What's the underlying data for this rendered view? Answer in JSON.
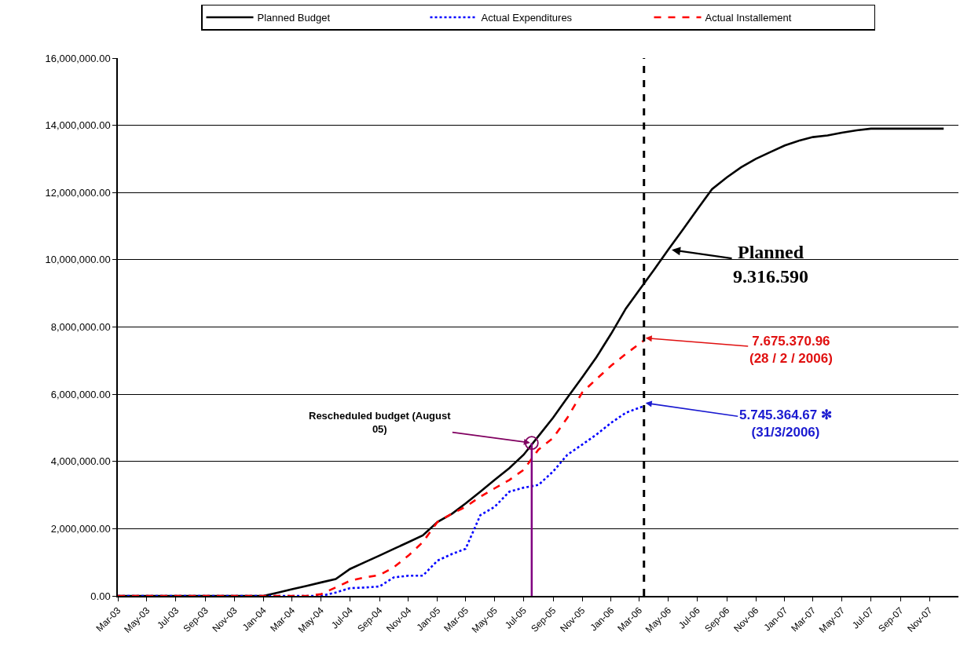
{
  "chart_data": {
    "type": "line",
    "x": [
      "2003-03",
      "2003-06",
      "2003-09",
      "2003-12",
      "2004-01",
      "2004-02",
      "2004-03",
      "2004-04",
      "2004-05",
      "2004-06",
      "2004-07",
      "2004-08",
      "2004-09",
      "2004-10",
      "2004-11",
      "2004-12",
      "2005-01",
      "2005-02",
      "2005-03",
      "2005-04",
      "2005-05",
      "2005-06",
      "2005-07",
      "2005-08",
      "2005-09",
      "2005-10",
      "2005-11",
      "2005-12",
      "2006-01",
      "2006-02",
      "2006-03",
      "2006-04",
      "2006-05",
      "2006-06",
      "2006-07",
      "2006-08",
      "2006-09",
      "2006-10",
      "2006-11",
      "2006-12",
      "2007-01",
      "2007-02",
      "2007-03",
      "2007-04",
      "2007-05",
      "2007-06",
      "2007-07",
      "2007-08",
      "2007-09",
      "2007-10",
      "2007-11",
      "2007-12"
    ],
    "series": [
      {
        "name": "Planned Budget",
        "color": "#000000",
        "line_style": "solid",
        "values": [
          0,
          0,
          0,
          0,
          0,
          100000,
          200000,
          300000,
          400000,
          500000,
          800000,
          1000000,
          1200000,
          1400000,
          1600000,
          1800000,
          2200000,
          2450000,
          2750000,
          3100000,
          3450000,
          3800000,
          4200000,
          4750000,
          5300000,
          5900000,
          6500000,
          7100000,
          7800000,
          8550000,
          9100000,
          9700000,
          10300000,
          10900000,
          11500000,
          12100000,
          12450000,
          12750000,
          13000000,
          13200000,
          13400000,
          13550000,
          13650000,
          13700000,
          13780000,
          13850000,
          13900000,
          13900000,
          13900000,
          13900000,
          13900000,
          13900000
        ]
      },
      {
        "name": "Actual Expenditures",
        "color": "#0000ff",
        "line_style": "dotted",
        "x": [
          "2003-03",
          "2003-06",
          "2003-09",
          "2003-12",
          "2004-03",
          "2004-05",
          "2004-06",
          "2004-07",
          "2004-08",
          "2004-09",
          "2004-10",
          "2004-11",
          "2004-12",
          "2005-01",
          "2005-02",
          "2005-03",
          "2005-04",
          "2005-05",
          "2005-06",
          "2005-07",
          "2005-08",
          "2005-09",
          "2005-10",
          "2005-11",
          "2005-12",
          "2006-01",
          "2006-02",
          "2006-03-11"
        ],
        "values": [
          0,
          0,
          0,
          0,
          0,
          0,
          100000,
          230000,
          250000,
          280000,
          550000,
          600000,
          600000,
          1050000,
          1250000,
          1400000,
          2400000,
          2650000,
          3100000,
          3220000,
          3300000,
          3700000,
          4200000,
          4500000,
          4800000,
          5150000,
          5450000,
          5650000
        ]
      },
      {
        "name": "Actual Installement",
        "color": "#ff0000",
        "line_style": "dashed",
        "x": [
          "2003-03",
          "2003-06",
          "2003-09",
          "2003-12",
          "2004-03",
          "2004-04",
          "2004-05",
          "2004-06",
          "2004-07",
          "2004-08",
          "2004-09",
          "2004-10",
          "2004-11",
          "2004-12",
          "2005-01",
          "2005-02",
          "2005-03",
          "2005-04",
          "2005-05",
          "2005-06",
          "2005-07",
          "2005-08",
          "2005-09",
          "2005-10",
          "2005-11",
          "2005-12",
          "2006-01",
          "2006-02",
          "2006-03-11"
        ],
        "values": [
          0,
          0,
          0,
          0,
          0,
          0,
          50000,
          250000,
          450000,
          550000,
          620000,
          850000,
          1200000,
          1600000,
          2200000,
          2450000,
          2650000,
          2950000,
          3200000,
          3450000,
          3750000,
          4350000,
          4700000,
          5300000,
          6050000,
          6450000,
          6850000,
          7200000,
          7600000
        ]
      }
    ],
    "xlim": [
      "2003-03-01",
      "2008-01-01"
    ],
    "xticks": [
      {
        "value": "2003-03",
        "label": "Mar-03"
      },
      {
        "value": "2003-05",
        "label": "May-03"
      },
      {
        "value": "2003-07",
        "label": "Jul-03"
      },
      {
        "value": "2003-09",
        "label": "Sep-03"
      },
      {
        "value": "2003-11",
        "label": "Nov-03"
      },
      {
        "value": "2004-01",
        "label": "Jan-04"
      },
      {
        "value": "2004-03",
        "label": "Mar-04"
      },
      {
        "value": "2004-05",
        "label": "May-04"
      },
      {
        "value": "2004-07",
        "label": "Jul-04"
      },
      {
        "value": "2004-09",
        "label": "Sep-04"
      },
      {
        "value": "2004-11",
        "label": "Nov-04"
      },
      {
        "value": "2005-01",
        "label": "Jan-05"
      },
      {
        "value": "2005-03",
        "label": "Mar-05"
      },
      {
        "value": "2005-05",
        "label": "May-05"
      },
      {
        "value": "2005-07",
        "label": "Jul-05"
      },
      {
        "value": "2005-09",
        "label": "Sep-05"
      },
      {
        "value": "2005-11",
        "label": "Nov-05"
      },
      {
        "value": "2006-01",
        "label": "Jan-06"
      },
      {
        "value": "2006-03",
        "label": "Mar-06"
      },
      {
        "value": "2006-05",
        "label": "May-06"
      },
      {
        "value": "2006-07",
        "label": "Jul-06"
      },
      {
        "value": "2006-09",
        "label": "Sep-06"
      },
      {
        "value": "2006-11",
        "label": "Nov-06"
      },
      {
        "value": "2007-01",
        "label": "Jan-07"
      },
      {
        "value": "2007-03",
        "label": "Mar-07"
      },
      {
        "value": "2007-05",
        "label": "May-07"
      },
      {
        "value": "2007-07",
        "label": "Jul-07"
      },
      {
        "value": "2007-09",
        "label": "Sep-07"
      },
      {
        "value": "2007-11",
        "label": "Nov-07"
      }
    ],
    "ylim": [
      0,
      16000000
    ],
    "yticks": [
      {
        "value": 0,
        "label": "0.00"
      },
      {
        "value": 2000000,
        "label": "2,000,000.00"
      },
      {
        "value": 4000000,
        "label": "4,000,000.00"
      },
      {
        "value": 6000000,
        "label": "6,000,000.00"
      },
      {
        "value": 8000000,
        "label": "8,000,000.00"
      },
      {
        "value": 10000000,
        "label": "10,000,000.00"
      },
      {
        "value": 12000000,
        "label": "12,000,000.00"
      },
      {
        "value": 14000000,
        "label": "14,000,000.00"
      },
      {
        "value": 16000000,
        "label": "16,000,000.00"
      }
    ],
    "grid": "y",
    "legend": "top",
    "marker": "none",
    "ref_lines": [
      {
        "axis": "x",
        "value": "2006-03-11",
        "color": "#000000",
        "line_style": "dashed"
      },
      {
        "axis": "x",
        "value": "2005-07-18",
        "color": "#800080",
        "line_style": "solid"
      }
    ],
    "annotations": [
      {
        "text": "Planned\n9.316.590",
        "x": "2006-05-05",
        "y": 10300000
      },
      {
        "text": "7.675.370.96\n(28 / 2 / 2006)",
        "x": "2006-03-11",
        "y": 7675370.96
      },
      {
        "text": "5.745.364.67 ✻\n(31/3/2006)",
        "x": "2006-03-11",
        "y": 5745364.67
      },
      {
        "text": "Rescheduled budget (August 05)",
        "x": "2005-07-18",
        "y": 4550000
      }
    ]
  }
}
